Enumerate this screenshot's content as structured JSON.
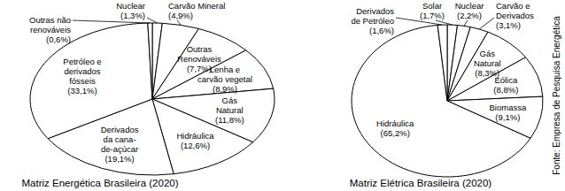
{
  "chart_data": [
    {
      "type": "pie",
      "title": "Matriz Energética Brasileira (2020)",
      "categories": [
        "Nuclear",
        "Carvão Mineral",
        "Outras\nRenováveis",
        "Lenha e\ncarvão vegetal",
        "Gás\nNatural",
        "Hidráulica",
        "Derivados\nda cana-\nde-açúcar",
        "Petróleo e\nderivados\nfósseis",
        "Outras não\nrenováveis"
      ],
      "values": [
        1.3,
        4.9,
        7.7,
        8.9,
        11.8,
        12.6,
        19.1,
        33.1,
        0.6
      ],
      "value_labels": [
        "(1,3%)",
        "(4,9%)",
        "(7,7%)",
        "(8,9%)",
        "(11,8%)",
        "(12,6%)",
        "(19,1%)",
        "(33,1%)",
        "(0,6%)"
      ],
      "color": "#ffffff",
      "data_labels": true
    },
    {
      "type": "pie",
      "title": "Matriz Elétrica Brasileira (2020)",
      "categories": [
        "Solar",
        "Nuclear",
        "Carvão e\nDerivados",
        "Gás\nNatural",
        "Eólica",
        "Biomassa",
        "Hidráulica",
        "Derivados\nde Petróleo"
      ],
      "values": [
        1.7,
        2.2,
        3.1,
        8.3,
        8.8,
        9.1,
        65.2,
        1.6
      ],
      "value_labels": [
        "(1,7%)",
        "(2,2%)",
        "(3,1%)",
        "(8,3%)",
        "(8,8%)",
        "(9,1%)",
        "(65,2%)",
        "(1,6%)"
      ],
      "color": "#ffffff",
      "data_labels": true
    }
  ],
  "source": "Fonte: Empresa de Pesquisa Energética"
}
